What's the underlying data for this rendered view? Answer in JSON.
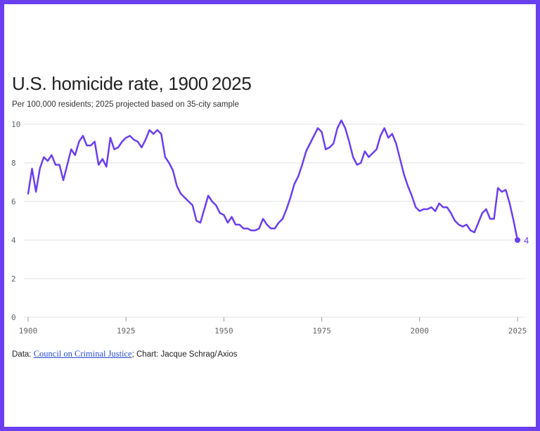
{
  "header": {
    "title": "U.S. homicide rate, 1900 2025",
    "subtitle": "Per 100,000 residents; 2025 projected based on 35-city sample"
  },
  "footer": {
    "data_prefix": "Data: ",
    "source_link": "Council on Criminal Justice",
    "chart_credit": "; Chart: Jacque Schrag/ Axios"
  },
  "colors": {
    "line": "#6a3ff0",
    "grid": "#e2e2e2",
    "border": "#6a3ff0"
  },
  "chart_data": {
    "type": "line",
    "title": "U.S. homicide rate, 1900 2025",
    "subtitle": "Per 100,000 residents; 2025 projected based on 35-city sample",
    "xlabel": "",
    "ylabel": "",
    "xlim": [
      1900,
      2025
    ],
    "ylim": [
      0,
      10
    ],
    "x_ticks": [
      1900,
      1925,
      1950,
      1975,
      2000,
      2025
    ],
    "y_ticks": [
      0,
      2,
      4,
      6,
      8,
      10
    ],
    "grid": true,
    "end_label": "4",
    "series": [
      {
        "name": "Homicide rate",
        "x": [
          1900,
          1901,
          1902,
          1903,
          1904,
          1905,
          1906,
          1907,
          1908,
          1909,
          1910,
          1911,
          1912,
          1913,
          1914,
          1915,
          1916,
          1917,
          1918,
          1919,
          1920,
          1921,
          1922,
          1923,
          1924,
          1925,
          1926,
          1927,
          1928,
          1929,
          1930,
          1931,
          1932,
          1933,
          1934,
          1935,
          1936,
          1937,
          1938,
          1939,
          1940,
          1941,
          1942,
          1943,
          1944,
          1945,
          1946,
          1947,
          1948,
          1949,
          1950,
          1951,
          1952,
          1953,
          1954,
          1955,
          1956,
          1957,
          1958,
          1959,
          1960,
          1961,
          1962,
          1963,
          1964,
          1965,
          1966,
          1967,
          1968,
          1969,
          1970,
          1971,
          1972,
          1973,
          1974,
          1975,
          1976,
          1977,
          1978,
          1979,
          1980,
          1981,
          1982,
          1983,
          1984,
          1985,
          1986,
          1987,
          1988,
          1989,
          1990,
          1991,
          1992,
          1993,
          1994,
          1995,
          1996,
          1997,
          1998,
          1999,
          2000,
          2001,
          2002,
          2003,
          2004,
          2005,
          2006,
          2007,
          2008,
          2009,
          2010,
          2011,
          2012,
          2013,
          2014,
          2015,
          2016,
          2017,
          2018,
          2019,
          2020,
          2021,
          2022,
          2023,
          2024,
          2025
        ],
        "y": [
          6.4,
          7.7,
          6.5,
          7.7,
          8.3,
          8.1,
          8.4,
          7.9,
          7.9,
          7.1,
          7.9,
          8.7,
          8.4,
          9.1,
          9.4,
          8.9,
          8.9,
          9.1,
          7.9,
          8.2,
          7.8,
          9.3,
          8.7,
          8.8,
          9.1,
          9.3,
          9.4,
          9.2,
          9.1,
          8.8,
          9.2,
          9.7,
          9.5,
          9.7,
          9.5,
          8.3,
          8.0,
          7.6,
          6.8,
          6.4,
          6.2,
          6.0,
          5.8,
          5.0,
          4.9,
          5.6,
          6.3,
          6.0,
          5.8,
          5.4,
          5.3,
          4.9,
          5.2,
          4.8,
          4.8,
          4.6,
          4.6,
          4.5,
          4.5,
          4.6,
          5.1,
          4.8,
          4.6,
          4.6,
          4.9,
          5.1,
          5.6,
          6.2,
          6.9,
          7.3,
          7.9,
          8.6,
          9.0,
          9.4,
          9.8,
          9.6,
          8.7,
          8.8,
          9.0,
          9.8,
          10.2,
          9.8,
          9.1,
          8.3,
          7.9,
          8.0,
          8.6,
          8.3,
          8.5,
          8.7,
          9.4,
          9.8,
          9.3,
          9.5,
          9.0,
          8.2,
          7.4,
          6.8,
          6.3,
          5.7,
          5.5,
          5.6,
          5.6,
          5.7,
          5.5,
          5.9,
          5.7,
          5.7,
          5.4,
          5.0,
          4.8,
          4.7,
          4.8,
          4.5,
          4.4,
          4.9,
          5.4,
          5.6,
          5.1,
          5.1,
          6.7,
          6.5,
          6.6,
          5.9,
          5.0,
          4.0
        ]
      }
    ]
  }
}
